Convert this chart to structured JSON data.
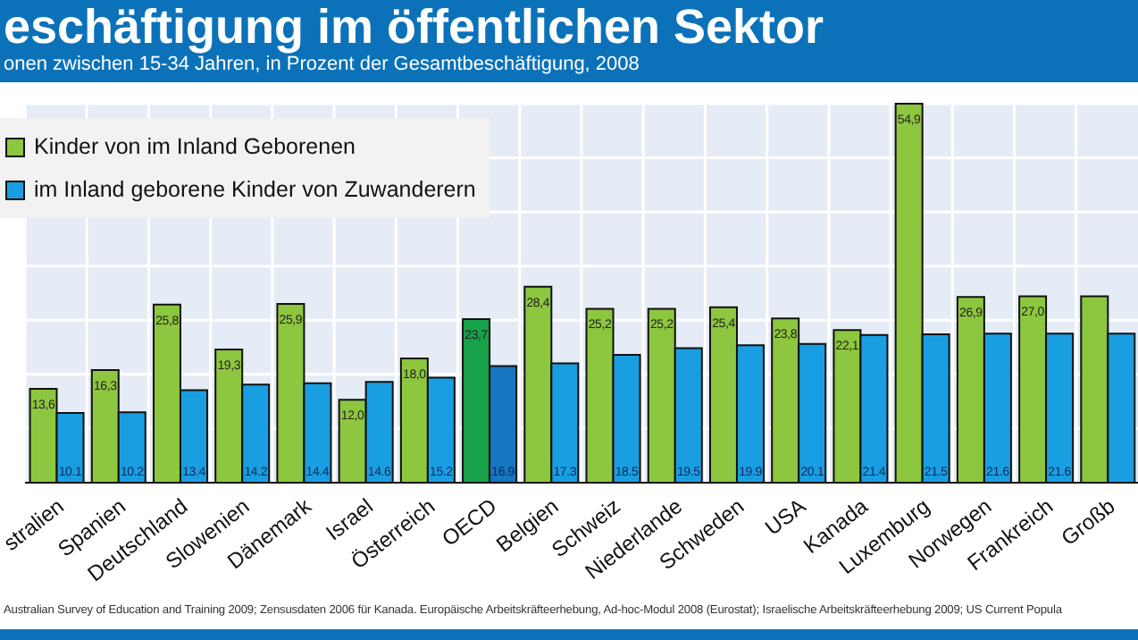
{
  "chart_data": {
    "type": "bar",
    "title": "eschäftigung im öffentlichen Sektor",
    "subtitle": "onen zwischen 15-34 Jahren, in Prozent der Gesamtbeschäftigung, 2008",
    "categories": [
      "stralien",
      "Spanien",
      "Deutschland",
      "Slowenien",
      "Dänemark",
      "Israel",
      "Österreich",
      "OECD",
      "Belgien",
      "Schweiz",
      "Niederlande",
      "Schweden",
      "USA",
      "Kanada",
      "Luxemburg",
      "Norwegen",
      "Frankreich",
      "Großb"
    ],
    "series": [
      {
        "name": "Kinder von im Inland Geborenen",
        "color": "#8dc63f",
        "colors": [
          "#8dc63f",
          "#8dc63f",
          "#8dc63f",
          "#8dc63f",
          "#8dc63f",
          "#8dc63f",
          "#8dc63f",
          "#17a24a",
          "#8dc63f",
          "#8dc63f",
          "#8dc63f",
          "#8dc63f",
          "#8dc63f",
          "#8dc63f",
          "#8dc63f",
          "#8dc63f",
          "#8dc63f",
          "#8dc63f"
        ],
        "values": [
          13.6,
          16.3,
          25.8,
          19.3,
          25.9,
          12.0,
          18.0,
          23.7,
          28.4,
          25.2,
          25.2,
          25.4,
          23.8,
          22.1,
          54.9,
          26.9,
          27.0,
          27.0
        ],
        "value_labels": [
          "13,6",
          "16,3",
          "25,8",
          "19,3",
          "25,9",
          "12,0",
          "18,0",
          "23,7",
          "28,4",
          "25,2",
          "25,2",
          "25,4",
          "23,8",
          "22,1",
          "54,9",
          "26,9",
          "27,0",
          null
        ]
      },
      {
        "name": "im Inland geborene Kinder von Zuwanderern",
        "color": "#1a9ee2",
        "colors": [
          "#1a9ee2",
          "#1a9ee2",
          "#1a9ee2",
          "#1a9ee2",
          "#1a9ee2",
          "#1a9ee2",
          "#1a9ee2",
          "#1676bf",
          "#1a9ee2",
          "#1a9ee2",
          "#1a9ee2",
          "#1a9ee2",
          "#1a9ee2",
          "#1a9ee2",
          "#1a9ee2",
          "#1a9ee2",
          "#1a9ee2",
          "#1a9ee2"
        ],
        "values": [
          10.1,
          10.2,
          13.4,
          14.2,
          14.4,
          14.6,
          15.2,
          16.9,
          17.3,
          18.5,
          19.5,
          19.9,
          20.1,
          21.4,
          21.5,
          21.6,
          21.6,
          21.6
        ],
        "value_labels": [
          "10.1",
          "10.2",
          "13.4",
          "14.2",
          "14.4",
          "14.6",
          "15.2",
          "16.9",
          "17.3",
          "18.5",
          "19.5",
          "19.9",
          "20.1",
          "21.4",
          "21.5",
          "21.6",
          "21.6",
          null
        ]
      }
    ],
    "grid": true,
    "legend": "top left",
    "annotations": [
      "Australian Survey of Education and Training 2009; Zensusdaten 2006 für Kanada. Europäische Arbeitskräfteerhebung, Ad-hoc-Modul 2008 (Eurostat); Israelische Arbeitskräfteerhebung 2009; US Current Popula"
    ]
  }
}
